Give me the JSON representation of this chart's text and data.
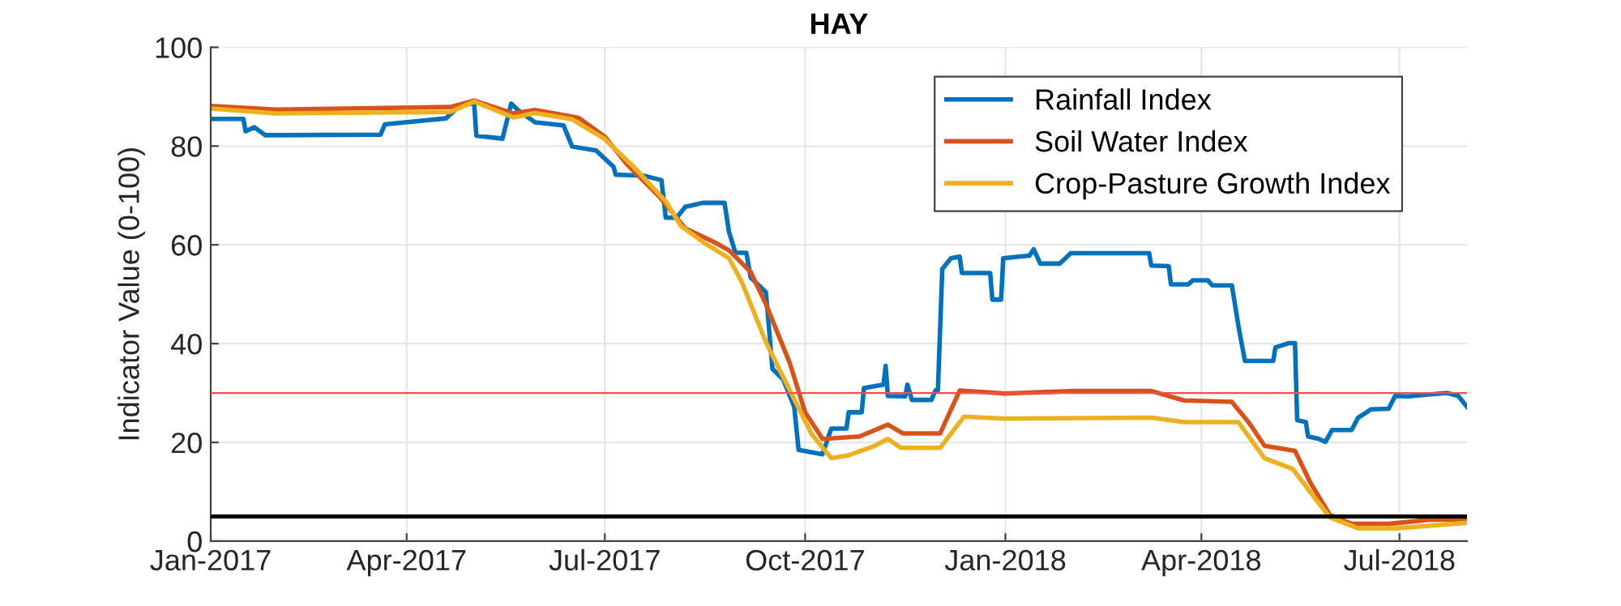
{
  "chart_data": {
    "type": "line",
    "title": "HAY",
    "ylabel": "Indicator Value (0-100)",
    "xlim": [
      "2017-01-01",
      "2018-08-01"
    ],
    "xticks": [
      {
        "value": "2017-01-01",
        "label": "Jan-2017"
      },
      {
        "value": "2017-04-01",
        "label": "Apr-2017"
      },
      {
        "value": "2017-07-01",
        "label": "Jul-2017"
      },
      {
        "value": "2017-10-01",
        "label": "Oct-2017"
      },
      {
        "value": "2018-01-01",
        "label": "Jan-2018"
      },
      {
        "value": "2018-04-01",
        "label": "Apr-2018"
      },
      {
        "value": "2018-07-01",
        "label": "Jul-2018"
      }
    ],
    "ylim": [
      0,
      100
    ],
    "yticks": [
      0,
      20,
      40,
      60,
      80,
      100
    ],
    "grid": true,
    "legend": "top right",
    "series": [
      {
        "name": "Rainfall Index",
        "color": "#0072bd",
        "x": [
          "2017-01-01",
          "2017-01-16",
          "2017-01-17",
          "2017-01-21",
          "2017-01-26",
          "2017-03-20",
          "2017-03-22",
          "2017-04-19",
          "2017-04-26",
          "2017-05-02",
          "2017-05-03",
          "2017-05-15",
          "2017-05-19",
          "2017-05-22",
          "2017-05-30",
          "2017-06-12",
          "2017-06-16",
          "2017-06-27",
          "2017-07-05",
          "2017-07-06",
          "2017-07-19",
          "2017-07-27",
          "2017-07-29",
          "2017-08-03",
          "2017-08-07",
          "2017-08-15",
          "2017-08-25",
          "2017-08-27",
          "2017-08-30",
          "2017-09-04",
          "2017-09-06",
          "2017-09-13",
          "2017-09-16",
          "2017-09-21",
          "2017-09-26",
          "2017-09-28",
          "2017-10-09",
          "2017-10-13",
          "2017-10-20",
          "2017-10-21",
          "2017-10-27",
          "2017-10-28",
          "2017-11-06",
          "2017-11-07",
          "2017-11-08",
          "2017-11-16",
          "2017-11-17",
          "2017-11-19",
          "2017-11-28",
          "2017-11-30",
          "2017-12-01",
          "2017-12-03",
          "2017-12-07",
          "2017-12-11",
          "2017-12-12",
          "2017-12-25",
          "2017-12-26",
          "2017-12-30",
          "2017-12-31",
          "2018-01-12",
          "2018-01-14",
          "2018-01-17",
          "2018-01-26",
          "2018-01-31",
          "2018-03-08",
          "2018-03-09",
          "2018-03-17",
          "2018-03-18",
          "2018-03-26",
          "2018-03-28",
          "2018-04-04",
          "2018-04-06",
          "2018-04-15",
          "2018-04-18",
          "2018-04-21",
          "2018-05-04",
          "2018-05-05",
          "2018-05-11",
          "2018-05-14",
          "2018-05-15",
          "2018-05-19",
          "2018-05-20",
          "2018-05-25",
          "2018-05-28",
          "2018-05-31",
          "2018-06-09",
          "2018-06-12",
          "2018-06-18",
          "2018-06-26",
          "2018-06-29",
          "2018-07-05",
          "2018-07-14",
          "2018-07-23",
          "2018-07-28",
          "2018-08-01"
        ],
        "values": [
          85.5,
          85.5,
          83.0,
          83.8,
          82.2,
          82.3,
          84.4,
          85.6,
          88.4,
          88.6,
          82.1,
          81.5,
          88.6,
          87.3,
          84.8,
          84.2,
          79.9,
          79.1,
          75.8,
          74.2,
          74.0,
          73.1,
          65.5,
          65.5,
          67.7,
          68.5,
          68.5,
          62.7,
          58.4,
          58.4,
          53.4,
          50.4,
          34.9,
          32.7,
          27.2,
          18.5,
          17.6,
          22.8,
          22.8,
          26.1,
          26.1,
          31.0,
          31.7,
          35.5,
          29.4,
          29.3,
          31.7,
          28.6,
          28.6,
          30.6,
          30.6,
          55.1,
          57.3,
          57.6,
          54.3,
          54.3,
          48.9,
          48.9,
          57.3,
          57.8,
          59.1,
          56.2,
          56.2,
          58.3,
          58.3,
          55.8,
          55.7,
          52.0,
          52.0,
          52.8,
          52.8,
          51.8,
          51.8,
          43.6,
          36.5,
          36.5,
          39.2,
          40.1,
          40.1,
          24.5,
          24.1,
          21.2,
          20.7,
          20.1,
          22.5,
          22.5,
          25.0,
          26.7,
          26.8,
          29.4,
          29.3,
          29.7,
          30.0,
          29.4,
          27.2
        ]
      },
      {
        "name": "Soil Water Index",
        "color": "#d95319",
        "x": [
          "2017-01-01",
          "2017-01-31",
          "2017-04-21",
          "2017-05-02",
          "2017-05-20",
          "2017-05-30",
          "2017-06-19",
          "2017-07-01",
          "2017-07-11",
          "2017-07-26",
          "2017-08-07",
          "2017-08-20",
          "2017-08-27",
          "2017-09-06",
          "2017-09-13",
          "2017-09-24",
          "2017-10-01",
          "2017-10-09",
          "2017-10-26",
          "2017-11-08",
          "2017-11-15",
          "2017-12-02",
          "2017-12-11",
          "2018-01-01",
          "2018-02-02",
          "2018-03-09",
          "2018-03-24",
          "2018-04-15",
          "2018-04-23",
          "2018-04-30",
          "2018-05-14",
          "2018-05-21",
          "2018-05-30",
          "2018-06-09",
          "2018-06-26",
          "2018-07-14",
          "2018-08-01"
        ],
        "values": [
          88.1,
          87.4,
          87.9,
          89.2,
          86.6,
          87.3,
          85.7,
          81.9,
          76.4,
          69.8,
          63.3,
          60.6,
          58.9,
          54.5,
          48.0,
          36.0,
          26.1,
          20.7,
          21.2,
          23.6,
          21.8,
          21.8,
          30.5,
          29.9,
          30.4,
          30.4,
          28.5,
          28.2,
          23.9,
          19.3,
          18.3,
          11.9,
          5.3,
          3.5,
          3.5,
          4.3,
          4.4
        ]
      },
      {
        "name": "Crop-Pasture Growth Index",
        "color": "#edb120",
        "x": [
          "2017-01-01",
          "2017-01-31",
          "2017-04-21",
          "2017-05-02",
          "2017-05-20",
          "2017-05-30",
          "2017-06-16",
          "2017-07-01",
          "2017-07-14",
          "2017-07-29",
          "2017-08-05",
          "2017-08-15",
          "2017-08-27",
          "2017-09-02",
          "2017-09-13",
          "2017-09-24",
          "2017-10-04",
          "2017-10-13",
          "2017-10-21",
          "2017-11-02",
          "2017-11-08",
          "2017-11-14",
          "2017-12-02",
          "2017-12-13",
          "2018-01-01",
          "2018-03-09",
          "2018-03-24",
          "2018-04-18",
          "2018-04-30",
          "2018-05-13",
          "2018-05-30",
          "2018-06-12",
          "2018-06-29",
          "2018-08-01"
        ],
        "values": [
          87.6,
          86.6,
          86.9,
          89.0,
          85.8,
          86.7,
          85.4,
          81.4,
          75.9,
          68.8,
          63.8,
          60.6,
          57.3,
          52.4,
          40.3,
          30.5,
          21.7,
          16.8,
          17.4,
          19.3,
          20.7,
          18.9,
          18.9,
          25.2,
          24.8,
          25.0,
          24.1,
          24.1,
          16.8,
          14.6,
          4.8,
          2.6,
          2.6,
          3.7
        ]
      }
    ],
    "ref_lines": [
      {
        "axis": "y",
        "value": 30,
        "color": "#f05050"
      },
      {
        "axis": "y",
        "value": 5,
        "color": "#000000"
      }
    ]
  }
}
